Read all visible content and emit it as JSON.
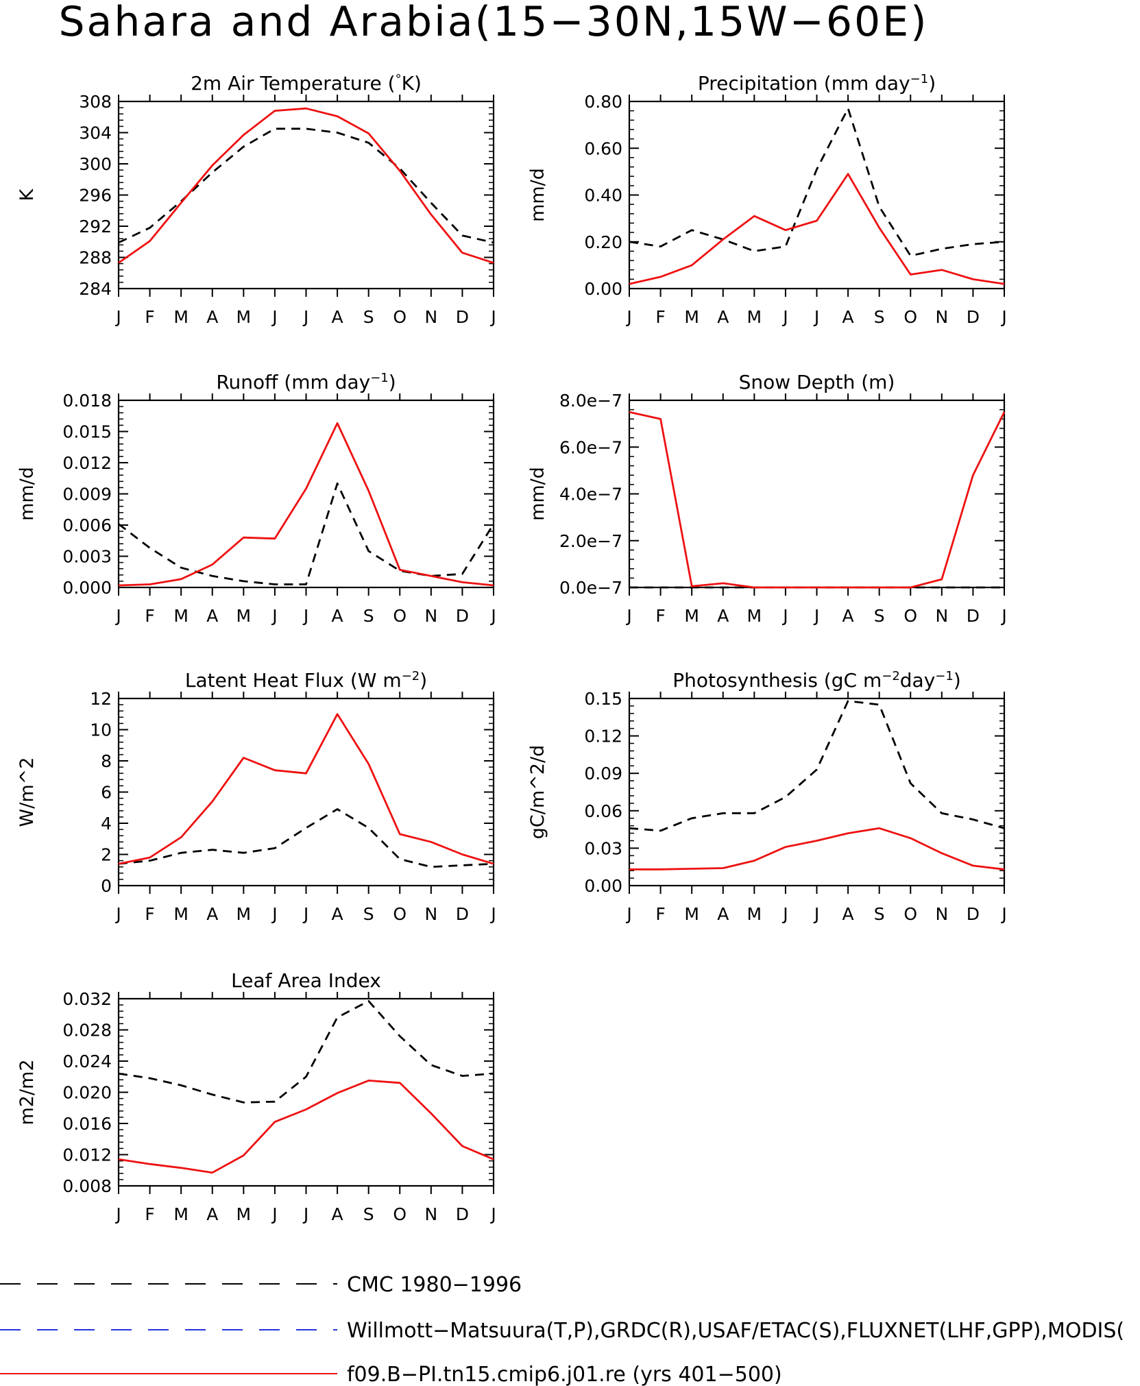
{
  "title": "Sahara and Arabia(15−30N,15W−60E)",
  "legend": [
    {
      "label": "CMC 1980−1996",
      "color": "#000000",
      "dash": "long"
    },
    {
      "label": "Willmott−Matsuura(T,P),GRDC(R),USAF/ETAC(S),FLUXNET(LHF,GPP),MODIS(",
      "color": "#2233dd",
      "dash": "long"
    },
    {
      "label": "f09.B−PI.tn15.cmip6.j01.re (yrs 401−500)",
      "color": "#ee1111",
      "dash": "solid"
    }
  ],
  "colors": {
    "reference": "#000000",
    "model": "#ee1111"
  },
  "chart_data": [
    {
      "type": "line",
      "title_parts": [
        "2m Air Temperature (",
        "°",
        "K)"
      ],
      "ylabel": "K",
      "categories": [
        "J",
        "F",
        "M",
        "A",
        "M",
        "J",
        "J",
        "A",
        "S",
        "O",
        "N",
        "D",
        "J"
      ],
      "ylim": [
        284,
        308
      ],
      "yticks": [
        "284",
        "288",
        "292",
        "296",
        "300",
        "304",
        "308"
      ],
      "series": [
        {
          "role": "reference",
          "values": [
            289.9,
            291.8,
            295.2,
            298.9,
            302.2,
            304.5,
            304.5,
            304.0,
            302.7,
            299.4,
            295.0,
            290.8,
            289.9
          ]
        },
        {
          "role": "model",
          "values": [
            287.3,
            290.1,
            295.0,
            299.8,
            303.7,
            306.8,
            307.1,
            306.1,
            303.9,
            299.1,
            293.5,
            288.6,
            287.3
          ]
        }
      ]
    },
    {
      "type": "line",
      "title_parts": [
        "Precipitation (mm day",
        "−1",
        ")"
      ],
      "ylabel": "mm/d",
      "categories": [
        "J",
        "F",
        "M",
        "A",
        "M",
        "J",
        "J",
        "A",
        "S",
        "O",
        "N",
        "D",
        "J"
      ],
      "ylim": [
        0,
        0.8
      ],
      "yticks": [
        "0.00",
        "0.20",
        "0.40",
        "0.60",
        "0.80"
      ],
      "series": [
        {
          "role": "reference",
          "values": [
            0.2,
            0.18,
            0.25,
            0.21,
            0.16,
            0.18,
            0.51,
            0.77,
            0.35,
            0.14,
            0.17,
            0.19,
            0.2
          ]
        },
        {
          "role": "model",
          "values": [
            0.02,
            0.05,
            0.1,
            0.21,
            0.31,
            0.25,
            0.29,
            0.49,
            0.26,
            0.06,
            0.08,
            0.04,
            0.02
          ]
        }
      ]
    },
    {
      "type": "line",
      "title_parts": [
        "Runoff (mm day",
        "−1",
        ")"
      ],
      "ylabel": "mm/d",
      "categories": [
        "J",
        "F",
        "M",
        "A",
        "M",
        "J",
        "J",
        "A",
        "S",
        "O",
        "N",
        "D",
        "J"
      ],
      "ylim": [
        0,
        0.018
      ],
      "yticks": [
        "0.000",
        "0.003",
        "0.006",
        "0.009",
        "0.012",
        "0.015",
        "0.018"
      ],
      "series": [
        {
          "role": "reference",
          "values": [
            0.0061,
            0.0038,
            0.0019,
            0.0011,
            0.0006,
            0.0003,
            0.0003,
            0.01,
            0.0035,
            0.0016,
            0.0011,
            0.0013,
            0.0061
          ]
        },
        {
          "role": "model",
          "values": [
            0.0002,
            0.0003,
            0.0008,
            0.0022,
            0.0048,
            0.0047,
            0.0095,
            0.0158,
            0.0093,
            0.0017,
            0.0011,
            0.0005,
            0.0002
          ]
        }
      ]
    },
    {
      "type": "line",
      "title_parts": [
        "Snow Depth (m)",
        "",
        ""
      ],
      "ylabel": "mm/d",
      "categories": [
        "J",
        "F",
        "M",
        "A",
        "M",
        "J",
        "J",
        "A",
        "S",
        "O",
        "N",
        "D",
        "J"
      ],
      "ylim": [
        0,
        8e-07
      ],
      "yticks": [
        "0.0e−7",
        "2.0e−7",
        "4.0e−7",
        "6.0e−7",
        "8.0e−7"
      ],
      "series": [
        {
          "role": "reference",
          "values": [
            0,
            0,
            0,
            0,
            0,
            0,
            0,
            0,
            0,
            0,
            0,
            0,
            0
          ]
        },
        {
          "role": "model",
          "values": [
            7.5e-07,
            7.2e-07,
            5e-09,
            1.8e-08,
            0,
            0,
            0,
            0,
            0,
            0,
            3.5e-08,
            4.8e-07,
            7.5e-07
          ]
        }
      ]
    },
    {
      "type": "line",
      "title_parts": [
        "Latent Heat Flux (W m",
        "−2",
        ")"
      ],
      "ylabel": "W/m^2",
      "categories": [
        "J",
        "F",
        "M",
        "A",
        "M",
        "J",
        "J",
        "A",
        "S",
        "O",
        "N",
        "D",
        "J"
      ],
      "ylim": [
        0,
        12
      ],
      "yticks": [
        "0",
        "2",
        "4",
        "6",
        "8",
        "10",
        "12"
      ],
      "series": [
        {
          "role": "reference",
          "values": [
            1.4,
            1.6,
            2.1,
            2.3,
            2.1,
            2.4,
            3.7,
            4.9,
            3.7,
            1.7,
            1.2,
            1.3,
            1.4
          ]
        },
        {
          "role": "model",
          "values": [
            1.4,
            1.8,
            3.1,
            5.4,
            8.2,
            7.4,
            7.2,
            11.0,
            7.8,
            3.3,
            2.8,
            2.0,
            1.4
          ]
        }
      ]
    },
    {
      "type": "line",
      "title_parts": [
        "Photosynthesis (gC m",
        "−2",
        "day",
        "−1",
        ")"
      ],
      "ylabel": "gC/m^2/d",
      "categories": [
        "J",
        "F",
        "M",
        "A",
        "M",
        "J",
        "J",
        "A",
        "S",
        "O",
        "N",
        "D",
        "J"
      ],
      "ylim": [
        0,
        0.15
      ],
      "yticks": [
        "0.00",
        "0.03",
        "0.06",
        "0.09",
        "0.12",
        "0.15"
      ],
      "series": [
        {
          "role": "reference",
          "values": [
            0.046,
            0.044,
            0.054,
            0.058,
            0.058,
            0.071,
            0.093,
            0.148,
            0.145,
            0.082,
            0.058,
            0.053,
            0.046
          ]
        },
        {
          "role": "model",
          "values": [
            0.013,
            0.013,
            0.0135,
            0.014,
            0.02,
            0.031,
            0.036,
            0.042,
            0.046,
            0.038,
            0.026,
            0.016,
            0.013
          ]
        }
      ]
    },
    {
      "type": "line",
      "title_parts": [
        "Leaf Area Index",
        "",
        ""
      ],
      "ylabel": "m2/m2",
      "categories": [
        "J",
        "F",
        "M",
        "A",
        "M",
        "J",
        "J",
        "A",
        "S",
        "O",
        "N",
        "D",
        "J"
      ],
      "ylim": [
        0.008,
        0.032
      ],
      "yticks": [
        "0.008",
        "0.012",
        "0.016",
        "0.020",
        "0.024",
        "0.028",
        "0.032"
      ],
      "series": [
        {
          "role": "reference",
          "values": [
            0.0224,
            0.0218,
            0.0209,
            0.0197,
            0.0187,
            0.0188,
            0.022,
            0.0296,
            0.0317,
            0.0272,
            0.0235,
            0.0221,
            0.0224
          ]
        },
        {
          "role": "model",
          "values": [
            0.0114,
            0.0108,
            0.0103,
            0.0097,
            0.0119,
            0.0162,
            0.0178,
            0.0199,
            0.0215,
            0.0212,
            0.0173,
            0.0131,
            0.0114
          ]
        }
      ]
    }
  ]
}
